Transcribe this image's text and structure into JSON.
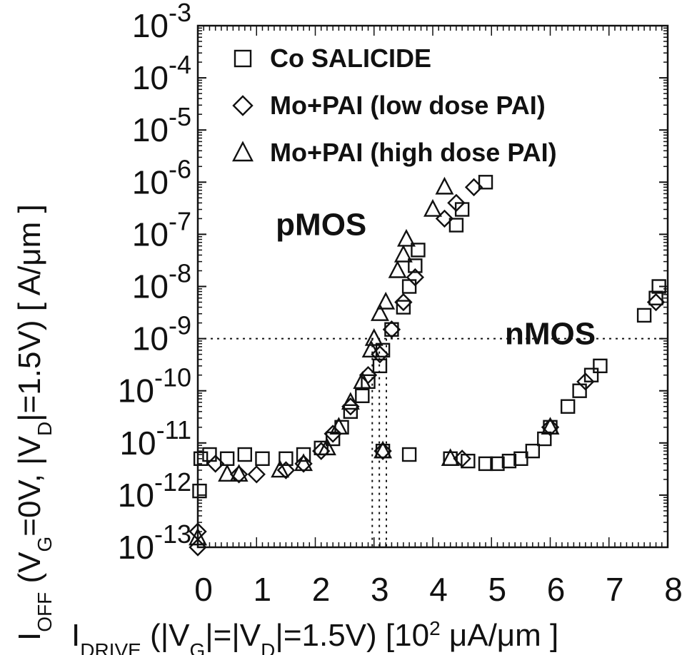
{
  "chart_data": {
    "type": "scatter",
    "title": "",
    "xlabel_parts": [
      {
        "t": "I"
      },
      {
        "sub": "DRIVE"
      },
      {
        "t": " (|V"
      },
      {
        "sub": "G"
      },
      {
        "t": "|=|V"
      },
      {
        "sub": "D"
      },
      {
        "t": "|=1.5V) [10"
      },
      {
        "sup": "2"
      },
      {
        "t": " μA/μm ]"
      }
    ],
    "ylabel_parts": [
      {
        "t": "I"
      },
      {
        "sub": "OFF"
      },
      {
        "t": " (V"
      },
      {
        "sub": "G"
      },
      {
        "t": "=0V, |V"
      },
      {
        "sub": "D"
      },
      {
        "t": "|=1.5V) [ A/μm ]"
      }
    ],
    "xlim": [
      0,
      8
    ],
    "ylim": [
      1e-13,
      0.001
    ],
    "yscale": "log",
    "grid": false,
    "legend_position": "top-left",
    "x_ticks": [
      "0",
      "1",
      "2",
      "3",
      "4",
      "5",
      "6",
      "7",
      "8"
    ],
    "y_ticks": [
      {
        "base": "10",
        "exp": "-3"
      },
      {
        "base": "10",
        "exp": "-4"
      },
      {
        "base": "10",
        "exp": "-5"
      },
      {
        "base": "10",
        "exp": "-6"
      },
      {
        "base": "10",
        "exp": "-7"
      },
      {
        "base": "10",
        "exp": "-8"
      },
      {
        "base": "10",
        "exp": "-9"
      },
      {
        "base": "10",
        "exp": "-10"
      },
      {
        "base": "10",
        "exp": "-11"
      },
      {
        "base": "10",
        "exp": "-12"
      },
      {
        "base": "10",
        "exp": "-13"
      }
    ],
    "reference_lines": {
      "horizontal_y": 1e-09,
      "vertical_x": [
        2.97,
        3.09,
        3.21
      ]
    },
    "annotations": [
      {
        "text": "pMOS",
        "x": 2.3,
        "y": 2.5e-07
      },
      {
        "text": "nMOS",
        "x": 6.2,
        "y": 2e-09
      }
    ],
    "series": [
      {
        "name": "Co SALICIDE",
        "marker": "square",
        "points": [
          [
            0.03,
            1.2e-12
          ],
          [
            0.05,
            5e-12
          ],
          [
            0.2,
            6e-12
          ],
          [
            0.5,
            5e-12
          ],
          [
            0.8,
            6e-12
          ],
          [
            1.1,
            5e-12
          ],
          [
            1.5,
            5e-12
          ],
          [
            1.8,
            6e-12
          ],
          [
            2.1,
            8e-12
          ],
          [
            2.3,
            1.2e-11
          ],
          [
            2.45,
            2e-11
          ],
          [
            2.6,
            4e-11
          ],
          [
            2.8,
            8e-11
          ],
          [
            2.9,
            1.5e-10
          ],
          [
            3.1,
            3e-10
          ],
          [
            3.15,
            6e-10
          ],
          [
            3.3,
            1.5e-09
          ],
          [
            3.5,
            4e-09
          ],
          [
            3.6,
            1e-08
          ],
          [
            3.7,
            2.5e-08
          ],
          [
            3.75,
            5e-08
          ],
          [
            4.4,
            1.5e-07
          ],
          [
            4.5,
            3e-07
          ],
          [
            4.9,
            1e-06
          ],
          [
            3.15,
            7e-12
          ],
          [
            3.6,
            6e-12
          ],
          [
            4.3,
            5e-12
          ],
          [
            4.6,
            4.5e-12
          ],
          [
            4.9,
            4e-12
          ],
          [
            5.1,
            4e-12
          ],
          [
            5.3,
            4.5e-12
          ],
          [
            5.5,
            5e-12
          ],
          [
            5.7,
            7e-12
          ],
          [
            5.9,
            1.2e-11
          ],
          [
            6.0,
            2e-11
          ],
          [
            6.3,
            5e-11
          ],
          [
            6.5,
            1e-10
          ],
          [
            6.7,
            2e-10
          ],
          [
            6.85,
            3e-10
          ],
          [
            7.6,
            2.8e-09
          ],
          [
            7.8,
            6e-09
          ],
          [
            7.85,
            1e-08
          ]
        ]
      },
      {
        "name": "Mo+PAI (low dose PAI)",
        "marker": "diamond",
        "points": [
          [
            0.0,
            1e-13
          ],
          [
            0.0,
            2e-13
          ],
          [
            0.3,
            4e-12
          ],
          [
            0.7,
            2.5e-12
          ],
          [
            1.0,
            2.5e-12
          ],
          [
            1.5,
            3e-12
          ],
          [
            1.8,
            4e-12
          ],
          [
            2.1,
            7e-12
          ],
          [
            2.3,
            1.5e-11
          ],
          [
            2.6,
            5e-11
          ],
          [
            2.9,
            2e-10
          ],
          [
            3.1,
            5e-10
          ],
          [
            3.3,
            1.5e-09
          ],
          [
            3.5,
            5e-09
          ],
          [
            3.7,
            1.5e-08
          ],
          [
            4.2,
            2e-07
          ],
          [
            4.4,
            4e-07
          ],
          [
            4.7,
            8e-07
          ],
          [
            3.15,
            7e-12
          ],
          [
            4.5,
            5e-12
          ],
          [
            6.0,
            2e-11
          ],
          [
            6.6,
            1.5e-10
          ],
          [
            7.8,
            5e-09
          ]
        ]
      },
      {
        "name": "Mo+PAI (high dose PAI)",
        "marker": "triangle",
        "points": [
          [
            0.0,
            1.5e-13
          ],
          [
            0.5,
            2.5e-12
          ],
          [
            0.7,
            2.5e-12
          ],
          [
            1.4,
            3e-12
          ],
          [
            1.8,
            4e-12
          ],
          [
            2.2,
            8e-12
          ],
          [
            2.4,
            2e-11
          ],
          [
            2.6,
            6e-11
          ],
          [
            2.8,
            1.5e-10
          ],
          [
            2.95,
            6e-10
          ],
          [
            3.0,
            1e-09
          ],
          [
            3.1,
            3e-09
          ],
          [
            3.2,
            5e-09
          ],
          [
            3.4,
            2e-08
          ],
          [
            3.5,
            4e-08
          ],
          [
            3.55,
            8e-08
          ],
          [
            4.0,
            3e-07
          ],
          [
            4.2,
            8e-07
          ],
          [
            3.15,
            7e-12
          ],
          [
            4.3,
            5e-12
          ],
          [
            6.0,
            2e-11
          ]
        ]
      }
    ]
  }
}
